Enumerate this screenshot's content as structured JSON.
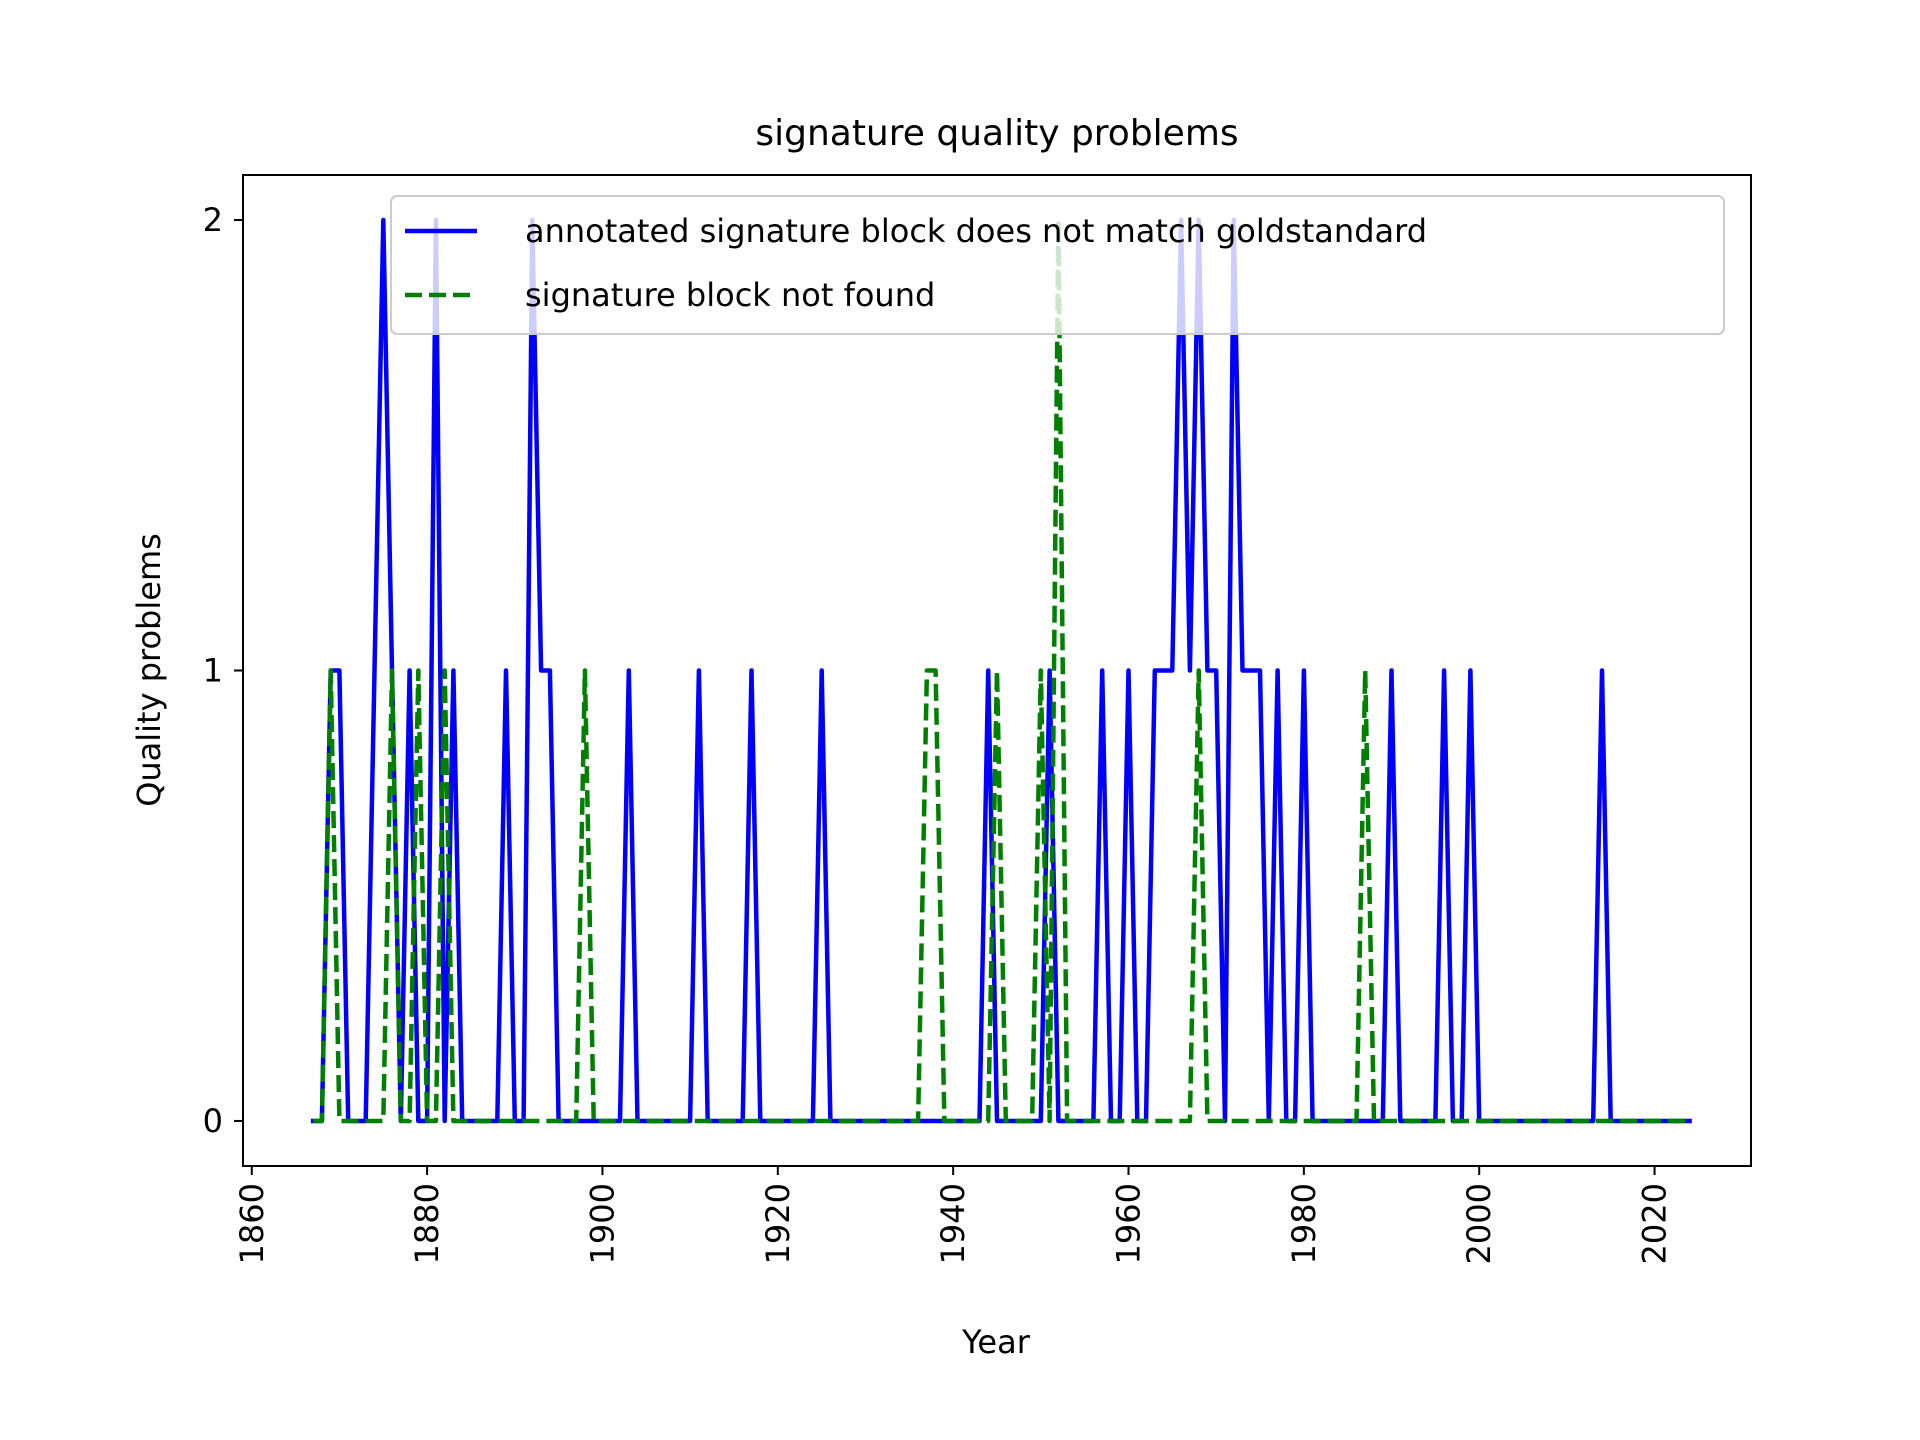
{
  "chart_data": {
    "type": "line",
    "title": "signature quality problems",
    "xlabel": "Year",
    "ylabel": "Quality problems",
    "xlim": [
      1859,
      2031
    ],
    "ylim": [
      -0.1,
      2.1
    ],
    "xticks": [
      1860,
      1880,
      1900,
      1920,
      1940,
      1960,
      1980,
      2000,
      2020
    ],
    "yticks": [
      0,
      1,
      2
    ],
    "grid": false,
    "legend_position": "top-right",
    "series": [
      {
        "name": "annotated signature block does not match goldstandard",
        "color": "#0000ff",
        "style": "solid",
        "x": [
          1867,
          1868,
          1869,
          1870,
          1871,
          1872,
          1873,
          1874,
          1875,
          1876,
          1877,
          1878,
          1879,
          1880,
          1881,
          1882,
          1883,
          1884,
          1885,
          1886,
          1887,
          1888,
          1889,
          1890,
          1891,
          1892,
          1893,
          1894,
          1895,
          1896,
          1897,
          1898,
          1899,
          1900,
          1901,
          1902,
          1903,
          1904,
          1905,
          1906,
          1907,
          1908,
          1909,
          1910,
          1911,
          1912,
          1913,
          1914,
          1915,
          1916,
          1917,
          1918,
          1919,
          1920,
          1921,
          1922,
          1923,
          1924,
          1925,
          1926,
          1927,
          1928,
          1929,
          1930,
          1931,
          1932,
          1933,
          1934,
          1935,
          1936,
          1937,
          1938,
          1939,
          1940,
          1941,
          1942,
          1943,
          1944,
          1945,
          1946,
          1947,
          1948,
          1949,
          1950,
          1951,
          1952,
          1953,
          1954,
          1955,
          1956,
          1957,
          1958,
          1959,
          1960,
          1961,
          1962,
          1963,
          1964,
          1965,
          1966,
          1967,
          1968,
          1969,
          1970,
          1971,
          1972,
          1973,
          1974,
          1975,
          1976,
          1977,
          1978,
          1979,
          1980,
          1981,
          1982,
          1983,
          1984,
          1985,
          1986,
          1987,
          1988,
          1989,
          1990,
          1991,
          1992,
          1993,
          1994,
          1995,
          1996,
          1997,
          1998,
          1999,
          2000,
          2001,
          2002,
          2003,
          2004,
          2005,
          2006,
          2007,
          2008,
          2009,
          2010,
          2011,
          2012,
          2013,
          2014,
          2015,
          2016,
          2017,
          2018,
          2019,
          2020,
          2021,
          2022,
          2023,
          2024
        ],
        "y": [
          0,
          0,
          1,
          1,
          0,
          0,
          0,
          1,
          2,
          1,
          0,
          1,
          0,
          0,
          2,
          0,
          1,
          0,
          0,
          0,
          0,
          0,
          1,
          0,
          0,
          2,
          1,
          1,
          0,
          0,
          0,
          0,
          0,
          0,
          0,
          0,
          1,
          0,
          0,
          0,
          0,
          0,
          0,
          0,
          1,
          0,
          0,
          0,
          0,
          0,
          1,
          0,
          0,
          0,
          0,
          0,
          0,
          0,
          1,
          0,
          0,
          0,
          0,
          0,
          0,
          0,
          0,
          0,
          0,
          0,
          0,
          0,
          0,
          0,
          0,
          0,
          0,
          1,
          0,
          0,
          0,
          0,
          0,
          0,
          1,
          0,
          0,
          0,
          0,
          0,
          1,
          0,
          0,
          1,
          0,
          0,
          1,
          1,
          1,
          2,
          1,
          2,
          1,
          1,
          0,
          2,
          1,
          1,
          1,
          0,
          1,
          0,
          0,
          1,
          0,
          0,
          0,
          0,
          0,
          0,
          0,
          0,
          0,
          1,
          0,
          0,
          0,
          0,
          0,
          1,
          0,
          0,
          1,
          0,
          0,
          0,
          0,
          0,
          0,
          0,
          0,
          0,
          0,
          0,
          0,
          0,
          0,
          1,
          0,
          0,
          0,
          0,
          0,
          0,
          0,
          0,
          0,
          0
        ]
      },
      {
        "name": "signature block not found",
        "color": "#008000",
        "style": "dashed",
        "x": [
          1867,
          1868,
          1869,
          1870,
          1871,
          1872,
          1873,
          1874,
          1875,
          1876,
          1877,
          1878,
          1879,
          1880,
          1881,
          1882,
          1883,
          1884,
          1885,
          1886,
          1887,
          1888,
          1889,
          1890,
          1891,
          1892,
          1893,
          1894,
          1895,
          1896,
          1897,
          1898,
          1899,
          1900,
          1901,
          1902,
          1903,
          1904,
          1905,
          1906,
          1907,
          1908,
          1909,
          1910,
          1911,
          1912,
          1913,
          1914,
          1915,
          1916,
          1917,
          1918,
          1919,
          1920,
          1921,
          1922,
          1923,
          1924,
          1925,
          1926,
          1927,
          1928,
          1929,
          1930,
          1931,
          1932,
          1933,
          1934,
          1935,
          1936,
          1937,
          1938,
          1939,
          1940,
          1941,
          1942,
          1943,
          1944,
          1945,
          1946,
          1947,
          1948,
          1949,
          1950,
          1951,
          1952,
          1953,
          1954,
          1955,
          1956,
          1957,
          1958,
          1959,
          1960,
          1961,
          1962,
          1963,
          1964,
          1965,
          1966,
          1967,
          1968,
          1969,
          1970,
          1971,
          1972,
          1973,
          1974,
          1975,
          1976,
          1977,
          1978,
          1979,
          1980,
          1981,
          1982,
          1983,
          1984,
          1985,
          1986,
          1987,
          1988,
          1989,
          1990,
          1991,
          1992,
          1993,
          1994,
          1995,
          1996,
          1997,
          1998,
          1999,
          2000,
          2001,
          2002,
          2003,
          2004,
          2005,
          2006,
          2007,
          2008,
          2009,
          2010,
          2011,
          2012,
          2013,
          2014,
          2015,
          2016,
          2017,
          2018,
          2019,
          2020,
          2021,
          2022,
          2023,
          2024
        ],
        "y": [
          0,
          0,
          1,
          0,
          0,
          0,
          0,
          0,
          0,
          1,
          0,
          0,
          1,
          0,
          0,
          1,
          0,
          0,
          0,
          0,
          0,
          0,
          0,
          0,
          0,
          0,
          0,
          0,
          0,
          0,
          0,
          1,
          0,
          0,
          0,
          0,
          0,
          0,
          0,
          0,
          0,
          0,
          0,
          0,
          0,
          0,
          0,
          0,
          0,
          0,
          0,
          0,
          0,
          0,
          0,
          0,
          0,
          0,
          0,
          0,
          0,
          0,
          0,
          0,
          0,
          0,
          0,
          0,
          0,
          0,
          1,
          1,
          0,
          0,
          0,
          0,
          0,
          0,
          1,
          0,
          0,
          0,
          0,
          1,
          0,
          2,
          0,
          0,
          0,
          0,
          0,
          0,
          0,
          0,
          0,
          0,
          0,
          0,
          0,
          0,
          0,
          1,
          0,
          0,
          0,
          0,
          0,
          0,
          0,
          0,
          0,
          0,
          0,
          0,
          0,
          0,
          0,
          0,
          0,
          0,
          1,
          0,
          0,
          0,
          0,
          0,
          0,
          0,
          0,
          0,
          0,
          0,
          0,
          0,
          0,
          0,
          0,
          0,
          0,
          0,
          0,
          0,
          0,
          0,
          0,
          0,
          0,
          0,
          0,
          0,
          0,
          0,
          0,
          0,
          0,
          0,
          0,
          0
        ]
      }
    ]
  }
}
